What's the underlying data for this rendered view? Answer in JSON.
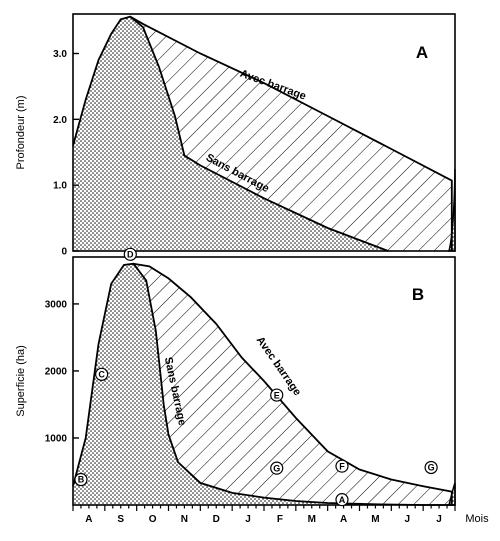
{
  "chart_data": [
    {
      "panel": "A",
      "type": "area",
      "ylabel": "Profondeur (m)",
      "ylim": [
        0,
        3.6
      ],
      "yticks": [
        "0",
        "1.0",
        "2.0",
        "3.0"
      ],
      "ytick_values": [
        0,
        1.0,
        2.0,
        3.0
      ],
      "x_range": [
        0,
        12
      ],
      "series": [
        {
          "name": "Sans barrage",
          "fill": "dotted",
          "x": [
            0,
            0.4,
            0.8,
            1.2,
            1.5,
            1.8,
            2.2,
            2.7,
            3.2,
            3.5,
            4.0,
            6.0,
            8.0,
            9.9
          ],
          "y": [
            1.6,
            2.3,
            2.9,
            3.3,
            3.52,
            3.56,
            3.4,
            2.8,
            2.05,
            1.45,
            1.3,
            0.8,
            0.35,
            0
          ]
        },
        {
          "name": "Avec barrage",
          "fill": "hatched",
          "x": [
            1.8,
            2.2,
            4.0,
            6.0,
            8.0,
            10.0,
            11.9
          ],
          "y": [
            3.56,
            3.45,
            3.0,
            2.55,
            2.05,
            1.55,
            1.07
          ]
        }
      ],
      "annotations": [
        "Avec barrage",
        "Sans barrage"
      ]
    },
    {
      "panel": "B",
      "type": "area",
      "ylabel": "Superficie (ha)",
      "ylim": [
        0,
        3700
      ],
      "yticks": [
        "1000",
        "2000",
        "3000"
      ],
      "ytick_values": [
        1000,
        2000,
        3000
      ],
      "x_range": [
        0,
        12
      ],
      "xlabel": "Mois",
      "months": [
        "A",
        "S",
        "O",
        "N",
        "D",
        "J",
        "F",
        "M",
        "A",
        "M",
        "J",
        "J"
      ],
      "series": [
        {
          "name": "Sans barrage",
          "fill": "dotted",
          "x": [
            0,
            0.4,
            0.8,
            1.2,
            1.6,
            1.9,
            2.3,
            2.6,
            2.85,
            3.0,
            3.3,
            4.0,
            5.0,
            6.0,
            7.0,
            8.0,
            9.5,
            11.0,
            12.0
          ],
          "y": [
            280,
            1000,
            2400,
            3300,
            3580,
            3600,
            3350,
            2600,
            1500,
            1050,
            640,
            330,
            180,
            110,
            60,
            30,
            10,
            0,
            0
          ]
        },
        {
          "name": "Avec barrage",
          "fill": "hatched",
          "x": [
            1.9,
            2.4,
            3.0,
            3.7,
            4.5,
            5.3,
            6.0,
            7.0,
            8.0,
            9.0,
            10.0,
            11.0,
            11.9
          ],
          "y": [
            3600,
            3560,
            3380,
            3100,
            2700,
            2200,
            1850,
            1300,
            800,
            530,
            380,
            280,
            200
          ]
        }
      ],
      "annotations": [
        "Avec barrage",
        "Sans barrage"
      ],
      "markers": [
        {
          "label": "D",
          "x": 1.8,
          "y": 3740
        },
        {
          "label": "C",
          "x": 0.9,
          "y": 1950
        },
        {
          "label": "B",
          "x": 0.25,
          "y": 380
        },
        {
          "label": "E",
          "x": 6.4,
          "y": 1640
        },
        {
          "label": "G",
          "x": 6.4,
          "y": 550
        },
        {
          "label": "F",
          "x": 8.45,
          "y": 580
        },
        {
          "label": "A",
          "x": 8.45,
          "y": 80
        },
        {
          "label": "G",
          "x": 11.25,
          "y": 560
        }
      ]
    }
  ]
}
